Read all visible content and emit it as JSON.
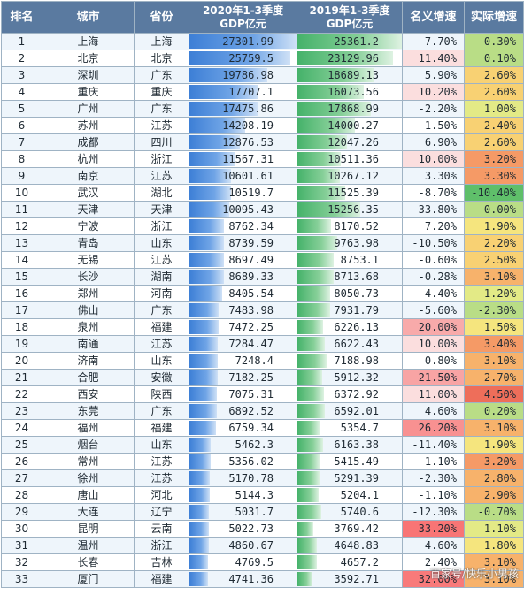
{
  "headers": {
    "rank": "排名",
    "city": "城市",
    "province": "省份",
    "gdp2020_line1": "2020年1-3季度",
    "gdp2020_line2": "GDP亿元",
    "gdp2019_line1": "2019年1-3季度",
    "gdp2019_line2": "GDP亿元",
    "nominal": "名义增速",
    "real": "实际增速"
  },
  "rows": [
    {
      "rank": "1",
      "city": "上海",
      "province": "上海",
      "gdp2020": "27301.99",
      "gdp2019": "25361.2",
      "nominal": "7.70%",
      "real": "-0.30%"
    },
    {
      "rank": "2",
      "city": "北京",
      "province": "北京",
      "gdp2020": "25759.5",
      "gdp2019": "23129.96",
      "nominal": "11.40%",
      "real": "0.10%"
    },
    {
      "rank": "3",
      "city": "深圳",
      "province": "广东",
      "gdp2020": "19786.98",
      "gdp2019": "18689.13",
      "nominal": "5.90%",
      "real": "2.60%"
    },
    {
      "rank": "4",
      "city": "重庆",
      "province": "重庆",
      "gdp2020": "17707.1",
      "gdp2019": "16073.56",
      "nominal": "10.20%",
      "real": "2.60%"
    },
    {
      "rank": "5",
      "city": "广州",
      "province": "广东",
      "gdp2020": "17475.86",
      "gdp2019": "17868.99",
      "nominal": "-2.20%",
      "real": "1.00%"
    },
    {
      "rank": "6",
      "city": "苏州",
      "province": "江苏",
      "gdp2020": "14208.19",
      "gdp2019": "14000.27",
      "nominal": "1.50%",
      "real": "2.40%"
    },
    {
      "rank": "7",
      "city": "成都",
      "province": "四川",
      "gdp2020": "12876.53",
      "gdp2019": "12047.26",
      "nominal": "6.90%",
      "real": "2.60%"
    },
    {
      "rank": "8",
      "city": "杭州",
      "province": "浙江",
      "gdp2020": "11567.31",
      "gdp2019": "10511.36",
      "nominal": "10.00%",
      "real": "3.20%"
    },
    {
      "rank": "9",
      "city": "南京",
      "province": "江苏",
      "gdp2020": "10601.61",
      "gdp2019": "10267.12",
      "nominal": "3.30%",
      "real": "3.30%"
    },
    {
      "rank": "10",
      "city": "武汉",
      "province": "湖北",
      "gdp2020": "10519.7",
      "gdp2019": "11525.39",
      "nominal": "-8.70%",
      "real": "-10.40%"
    },
    {
      "rank": "11",
      "city": "天津",
      "province": "天津",
      "gdp2020": "10095.43",
      "gdp2019": "15256.35",
      "nominal": "-33.80%",
      "real": "0.00%"
    },
    {
      "rank": "12",
      "city": "宁波",
      "province": "浙江",
      "gdp2020": "8762.34",
      "gdp2019": "8170.52",
      "nominal": "7.20%",
      "real": "1.90%"
    },
    {
      "rank": "13",
      "city": "青岛",
      "province": "山东",
      "gdp2020": "8739.59",
      "gdp2019": "9763.98",
      "nominal": "-10.50%",
      "real": "2.20%"
    },
    {
      "rank": "14",
      "city": "无锡",
      "province": "江苏",
      "gdp2020": "8697.49",
      "gdp2019": "8753.1",
      "nominal": "-0.60%",
      "real": "2.50%"
    },
    {
      "rank": "15",
      "city": "长沙",
      "province": "湖南",
      "gdp2020": "8689.33",
      "gdp2019": "8713.68",
      "nominal": "-0.28%",
      "real": "3.10%"
    },
    {
      "rank": "16",
      "city": "郑州",
      "province": "河南",
      "gdp2020": "8405.54",
      "gdp2019": "8050.73",
      "nominal": "4.40%",
      "real": "1.20%"
    },
    {
      "rank": "17",
      "city": "佛山",
      "province": "广东",
      "gdp2020": "7483.98",
      "gdp2019": "7931.79",
      "nominal": "-5.60%",
      "real": "-2.30%"
    },
    {
      "rank": "18",
      "city": "泉州",
      "province": "福建",
      "gdp2020": "7472.25",
      "gdp2019": "6226.13",
      "nominal": "20.00%",
      "real": "1.50%"
    },
    {
      "rank": "19",
      "city": "南通",
      "province": "江苏",
      "gdp2020": "7284.47",
      "gdp2019": "6622.43",
      "nominal": "10.00%",
      "real": "3.40%"
    },
    {
      "rank": "20",
      "city": "济南",
      "province": "山东",
      "gdp2020": "7248.4",
      "gdp2019": "7188.98",
      "nominal": "0.80%",
      "real": "3.10%"
    },
    {
      "rank": "21",
      "city": "合肥",
      "province": "安徽",
      "gdp2020": "7182.25",
      "gdp2019": "5912.32",
      "nominal": "21.50%",
      "real": "2.70%"
    },
    {
      "rank": "22",
      "city": "西安",
      "province": "陕西",
      "gdp2020": "7075.31",
      "gdp2019": "6372.92",
      "nominal": "11.00%",
      "real": "4.50%"
    },
    {
      "rank": "23",
      "city": "东莞",
      "province": "广东",
      "gdp2020": "6892.52",
      "gdp2019": "6592.01",
      "nominal": "4.60%",
      "real": "0.20%"
    },
    {
      "rank": "24",
      "city": "福州",
      "province": "福建",
      "gdp2020": "6759.34",
      "gdp2019": "5354.7",
      "nominal": "26.20%",
      "real": "3.10%"
    },
    {
      "rank": "25",
      "city": "烟台",
      "province": "山东",
      "gdp2020": "5462.3",
      "gdp2019": "6163.38",
      "nominal": "-11.40%",
      "real": "1.90%"
    },
    {
      "rank": "26",
      "city": "常州",
      "province": "江苏",
      "gdp2020": "5356.02",
      "gdp2019": "5415.49",
      "nominal": "-1.10%",
      "real": "3.20%"
    },
    {
      "rank": "27",
      "city": "徐州",
      "province": "江苏",
      "gdp2020": "5170.78",
      "gdp2019": "5291.39",
      "nominal": "-2.30%",
      "real": "2.80%"
    },
    {
      "rank": "28",
      "city": "唐山",
      "province": "河北",
      "gdp2020": "5144.3",
      "gdp2019": "5204.1",
      "nominal": "-1.10%",
      "real": "2.90%"
    },
    {
      "rank": "29",
      "city": "大连",
      "province": "辽宁",
      "gdp2020": "5031.7",
      "gdp2019": "5740.6",
      "nominal": "-12.30%",
      "real": "-0.70%"
    },
    {
      "rank": "30",
      "city": "昆明",
      "province": "云南",
      "gdp2020": "5022.73",
      "gdp2019": "3769.42",
      "nominal": "33.20%",
      "real": "1.10%"
    },
    {
      "rank": "31",
      "city": "温州",
      "province": "浙江",
      "gdp2020": "4860.67",
      "gdp2019": "4648.83",
      "nominal": "4.60%",
      "real": "1.80%"
    },
    {
      "rank": "32",
      "city": "长春",
      "province": "吉林",
      "gdp2020": "4769.5",
      "gdp2019": "4657.2",
      "nominal": "2.40%",
      "real": "3.10%"
    },
    {
      "rank": "33",
      "city": "厦门",
      "province": "福建",
      "gdp2020": "4741.36",
      "gdp2019": "3592.71",
      "nominal": "32.00%",
      "real": "3.10%"
    }
  ],
  "watermark": "百家号/快乐小男孩",
  "colors": {
    "header_bg": "#5a7aa0",
    "bar_2020": "#3d7fd6",
    "bar_2019": "#45b26a",
    "nominal_high": "#f58a8a",
    "real_low": "#5fbf6a",
    "real_mid": "#f5e87a",
    "real_high": "#f08c6a"
  }
}
